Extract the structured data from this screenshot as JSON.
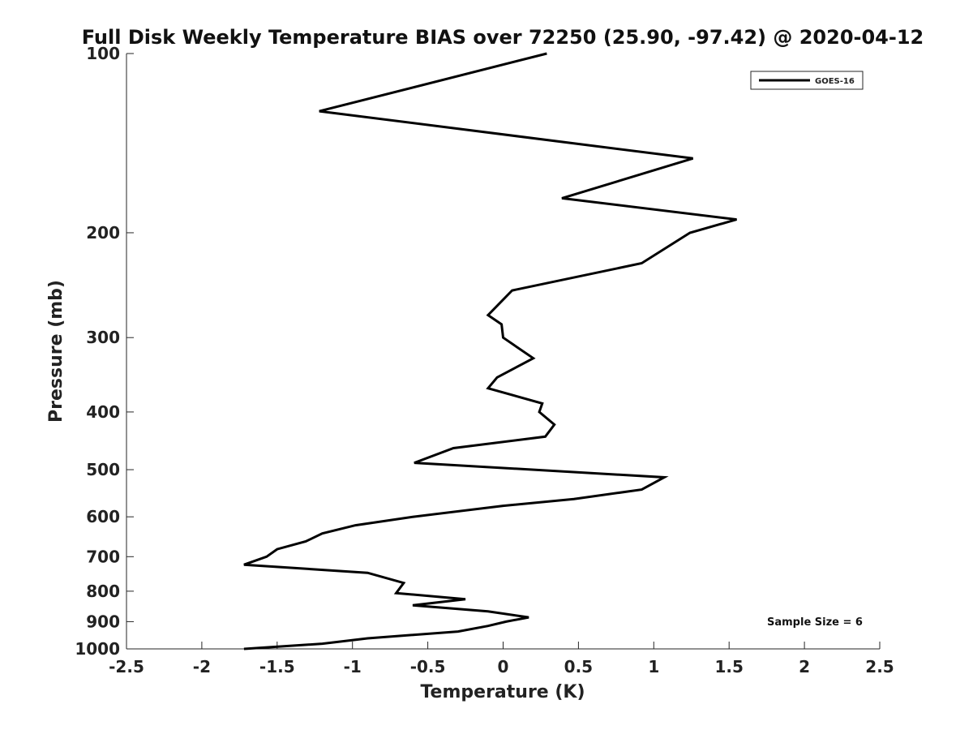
{
  "chart_data": {
    "type": "line",
    "title": "Full Disk Weekly Temperature BIAS over 72250 (25.90, -97.42) @ 2020-04-12",
    "xlabel": "Temperature (K)",
    "ylabel": "Pressure (mb)",
    "xlim": [
      -2.5,
      2.5
    ],
    "ylim": [
      1000,
      100
    ],
    "y_scale": "log",
    "y_reversed": true,
    "grid": false,
    "legend_position": "top-right",
    "x_ticks": [
      -2.5,
      -2,
      -1.5,
      -1,
      -0.5,
      0,
      0.5,
      1,
      1.5,
      2,
      2.5
    ],
    "x_tick_labels": [
      "-2.5",
      "-2",
      "-1.5",
      "-1",
      "-0.5",
      "0",
      "0.5",
      "1",
      "1.5",
      "2",
      "2.5"
    ],
    "y_ticks": [
      100,
      200,
      300,
      400,
      500,
      600,
      700,
      800,
      900,
      1000
    ],
    "y_tick_labels": [
      "100",
      "200",
      "300",
      "400",
      "500",
      "600",
      "700",
      "800",
      "900",
      "1000"
    ],
    "series": [
      {
        "name": "GOES-16",
        "color": "#000000",
        "points": [
          {
            "x": 0.29,
            "y": 100
          },
          {
            "x": -1.22,
            "y": 125
          },
          {
            "x": 1.26,
            "y": 150
          },
          {
            "x": 0.39,
            "y": 175
          },
          {
            "x": 1.55,
            "y": 190
          },
          {
            "x": 1.24,
            "y": 200
          },
          {
            "x": 0.92,
            "y": 225
          },
          {
            "x": 0.06,
            "y": 250
          },
          {
            "x": -0.1,
            "y": 275
          },
          {
            "x": -0.01,
            "y": 285
          },
          {
            "x": 0.0,
            "y": 300
          },
          {
            "x": 0.2,
            "y": 325
          },
          {
            "x": -0.04,
            "y": 350
          },
          {
            "x": -0.1,
            "y": 365
          },
          {
            "x": 0.26,
            "y": 387
          },
          {
            "x": 0.24,
            "y": 400
          },
          {
            "x": 0.34,
            "y": 420
          },
          {
            "x": 0.28,
            "y": 440
          },
          {
            "x": -0.33,
            "y": 460
          },
          {
            "x": -0.59,
            "y": 487
          },
          {
            "x": 1.07,
            "y": 515
          },
          {
            "x": 0.92,
            "y": 540
          },
          {
            "x": 0.47,
            "y": 560
          },
          {
            "x": 0.0,
            "y": 575
          },
          {
            "x": -0.6,
            "y": 600
          },
          {
            "x": -0.98,
            "y": 620
          },
          {
            "x": -1.2,
            "y": 640
          },
          {
            "x": -1.31,
            "y": 660
          },
          {
            "x": -1.5,
            "y": 680
          },
          {
            "x": -1.57,
            "y": 700
          },
          {
            "x": -1.72,
            "y": 722
          },
          {
            "x": -0.9,
            "y": 745
          },
          {
            "x": -0.66,
            "y": 775
          },
          {
            "x": -0.71,
            "y": 806
          },
          {
            "x": -0.25,
            "y": 825
          },
          {
            "x": -0.6,
            "y": 845
          },
          {
            "x": -0.1,
            "y": 865
          },
          {
            "x": 0.17,
            "y": 885
          },
          {
            "x": 0.02,
            "y": 900
          },
          {
            "x": -0.1,
            "y": 915
          },
          {
            "x": -0.3,
            "y": 935
          },
          {
            "x": -0.9,
            "y": 960
          },
          {
            "x": -1.2,
            "y": 980
          },
          {
            "x": -1.72,
            "y": 1000
          }
        ]
      }
    ],
    "annotations": [
      "Sample Size = 6"
    ]
  }
}
